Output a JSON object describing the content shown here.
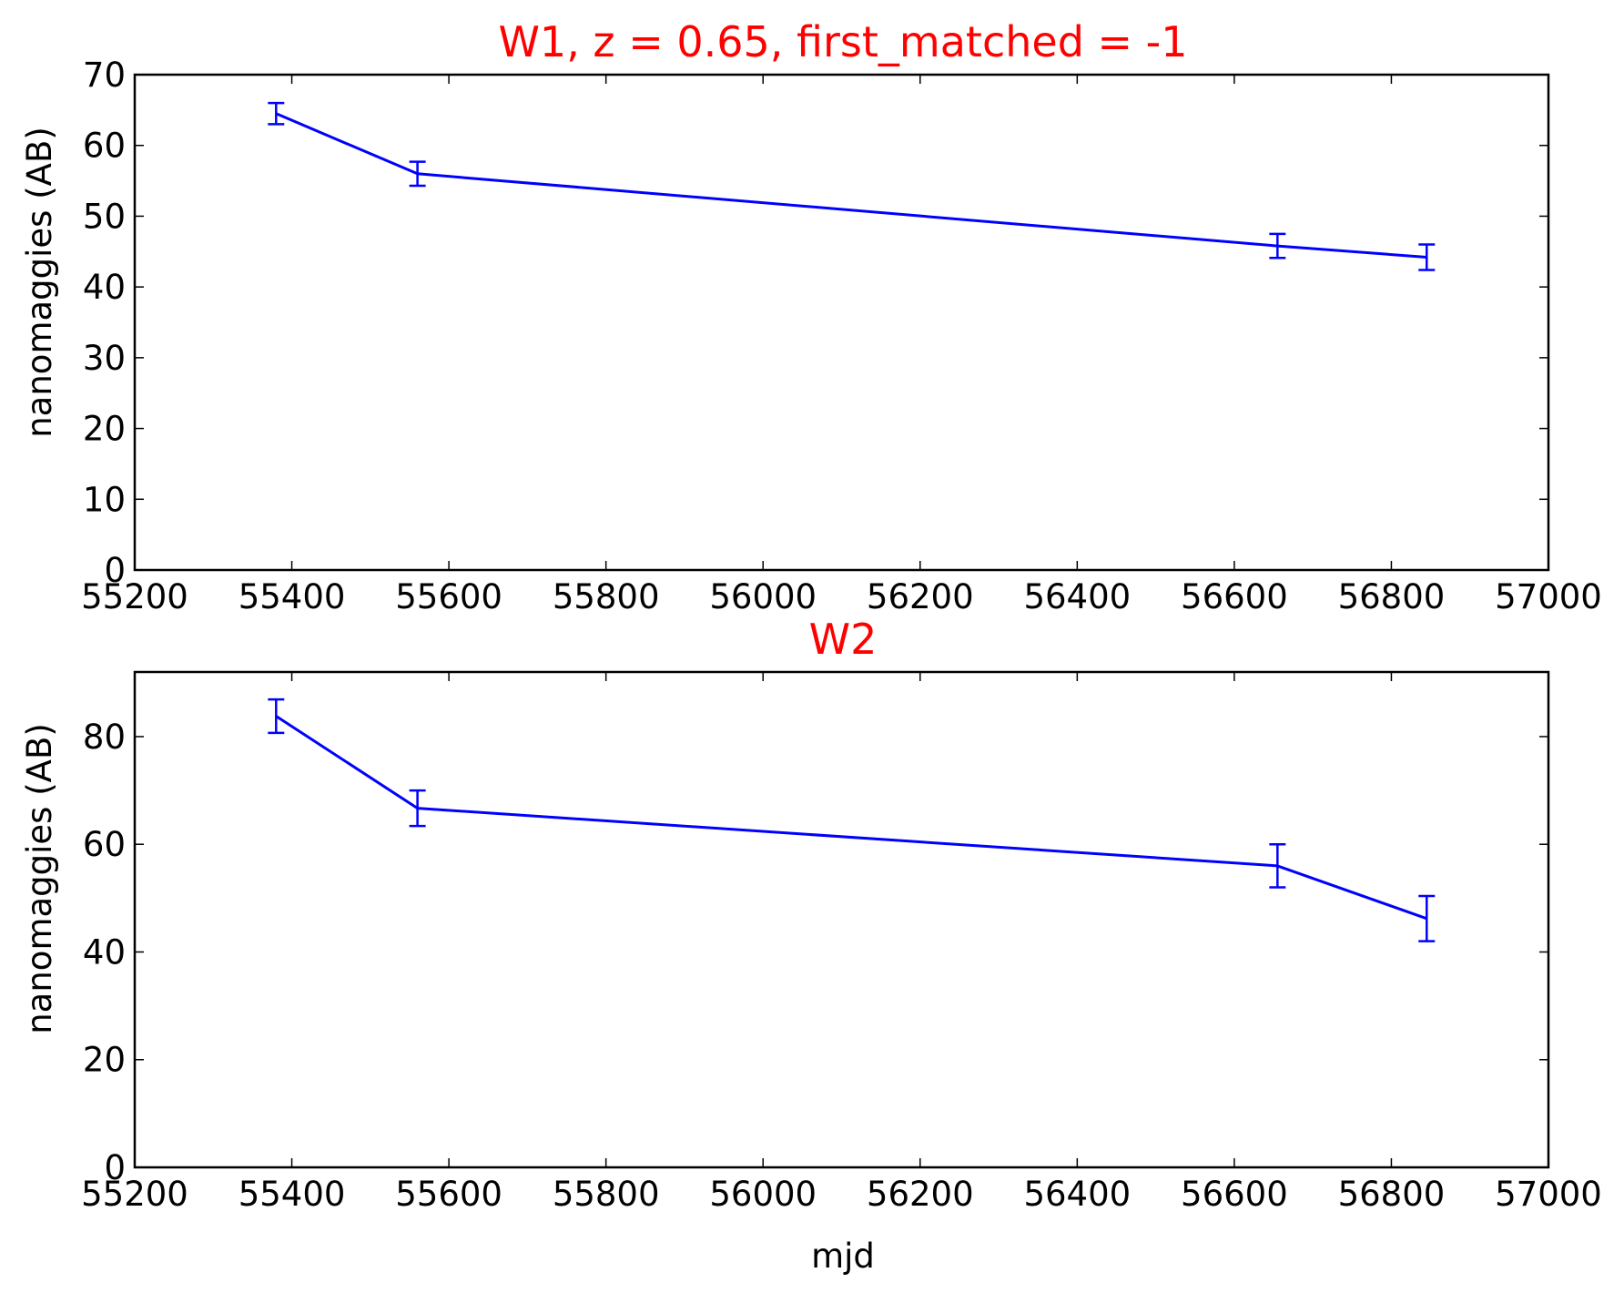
{
  "chart_data": [
    {
      "type": "line",
      "title": "W1, z = 0.65, first_matched = -1",
      "title_color": "#ff0000",
      "xlabel": "",
      "ylabel": "nanomaggies (AB)",
      "xlim": [
        55200,
        57000
      ],
      "ylim": [
        0,
        70
      ],
      "x_ticks": [
        "55200",
        "55400",
        "55600",
        "55800",
        "56000",
        "56200",
        "56400",
        "56600",
        "56800",
        "57000"
      ],
      "y_ticks": [
        "0",
        "10",
        "20",
        "30",
        "40",
        "50",
        "60",
        "70"
      ],
      "grid": false,
      "series": [
        {
          "color": "#0000ff",
          "x": [
            55380,
            55560,
            56655,
            56845
          ],
          "y": [
            64.5,
            56.0,
            45.8,
            44.2
          ],
          "yerr": [
            1.5,
            1.7,
            1.7,
            1.8
          ]
        }
      ]
    },
    {
      "type": "line",
      "title": "W2",
      "title_color": "#ff0000",
      "xlabel": "mjd",
      "ylabel": "nanomaggies (AB)",
      "xlim": [
        55200,
        57000
      ],
      "ylim": [
        0,
        92
      ],
      "x_ticks": [
        "55200",
        "55400",
        "55600",
        "55800",
        "56000",
        "56200",
        "56400",
        "56600",
        "56800",
        "57000"
      ],
      "y_ticks": [
        "0",
        "20",
        "40",
        "60",
        "80"
      ],
      "grid": false,
      "series": [
        {
          "color": "#0000ff",
          "x": [
            55380,
            55560,
            56655,
            56845
          ],
          "y": [
            83.8,
            66.7,
            56.0,
            46.2
          ],
          "yerr": [
            3.1,
            3.3,
            4.0,
            4.2
          ]
        }
      ]
    }
  ]
}
